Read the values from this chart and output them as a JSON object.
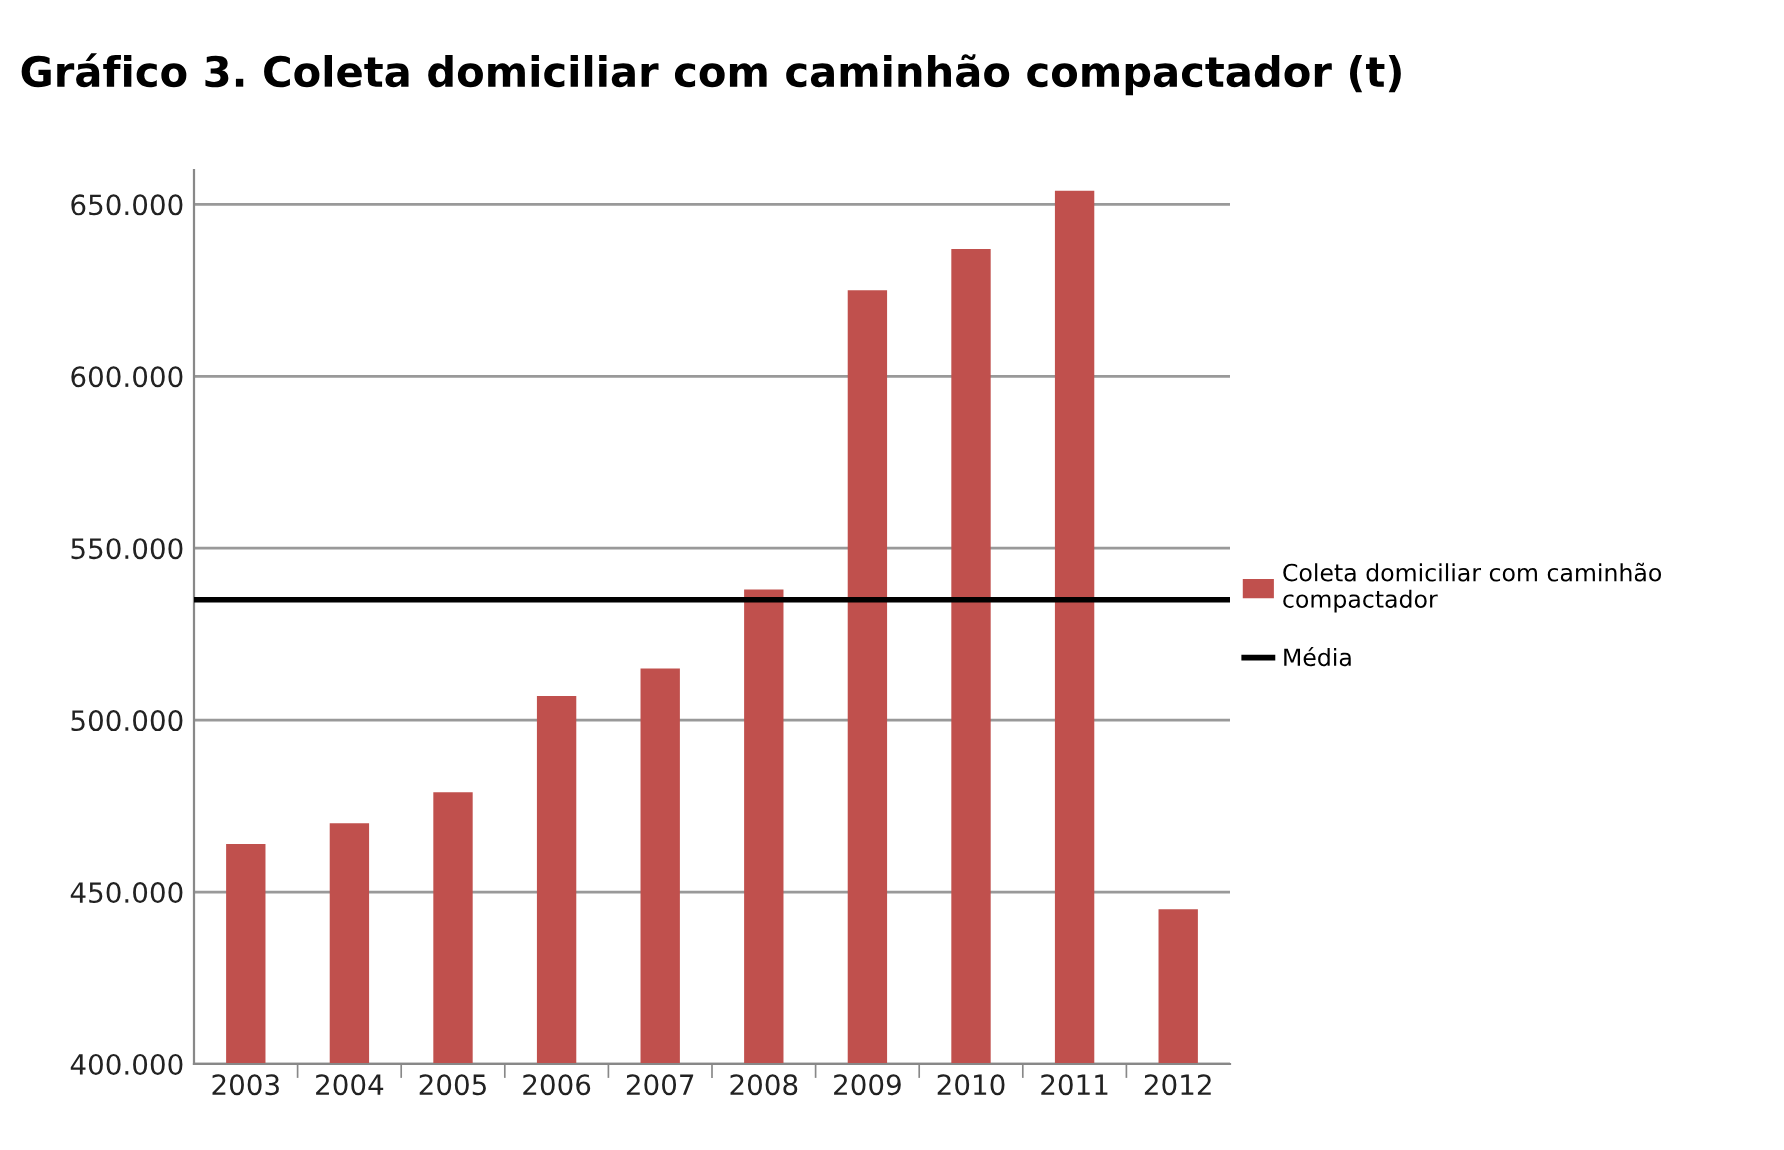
{
  "chart_data": {
    "type": "bar",
    "title": "Gráfico 3. Coleta domiciliar com caminhão compactador (t)",
    "categories": [
      "2003",
      "2004",
      "2005",
      "2006",
      "2007",
      "2008",
      "2009",
      "2010",
      "2011",
      "2012"
    ],
    "series": [
      {
        "name": "Coleta domiciliar com caminhão compactador",
        "color": "#c0504d",
        "values": [
          464000,
          470000,
          479000,
          507000,
          515000,
          538000,
          625000,
          637000,
          654000,
          445000
        ]
      }
    ],
    "ref_lines": [
      {
        "axis": "y",
        "value": 535000,
        "label": "Média",
        "color": "#000000",
        "line_style": "solid"
      }
    ],
    "ylim": [
      400000,
      660000
    ],
    "yticks": [
      {
        "value": 400000,
        "label": "400.000"
      },
      {
        "value": 450000,
        "label": "450.000"
      },
      {
        "value": 500000,
        "label": "500.000"
      },
      {
        "value": 550000,
        "label": "550.000"
      },
      {
        "value": 600000,
        "label": "600.000"
      },
      {
        "value": 650000,
        "label": "650.000"
      }
    ],
    "grid": "y",
    "legend": "right"
  }
}
